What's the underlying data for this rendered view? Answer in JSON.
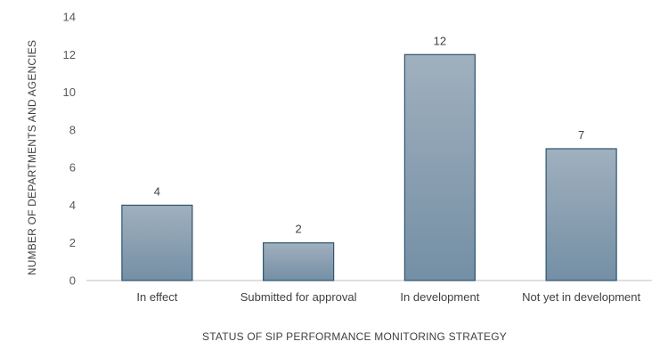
{
  "chart_data": {
    "type": "bar",
    "categories": [
      "In effect",
      "Submitted for approval",
      "In development",
      "Not yet in development"
    ],
    "values": [
      4,
      2,
      12,
      7
    ],
    "data_labels": [
      "4",
      "2",
      "12",
      "7"
    ],
    "title": "",
    "xlabel": "STATUS OF SIP PERFORMANCE MONITORING STRATEGY",
    "ylabel": "NUMBER OF DEPARTMENTS AND AGENCIES",
    "ylim": [
      0,
      14
    ],
    "yticks": [
      0,
      2,
      4,
      6,
      8,
      10,
      12,
      14
    ],
    "grid": false,
    "legend": "none",
    "colors": {
      "bar_top": "#A0B0BE",
      "bar_bottom": "#748FA5",
      "bar_border": "#2E5470",
      "axis": "#BFBFBF"
    }
  }
}
